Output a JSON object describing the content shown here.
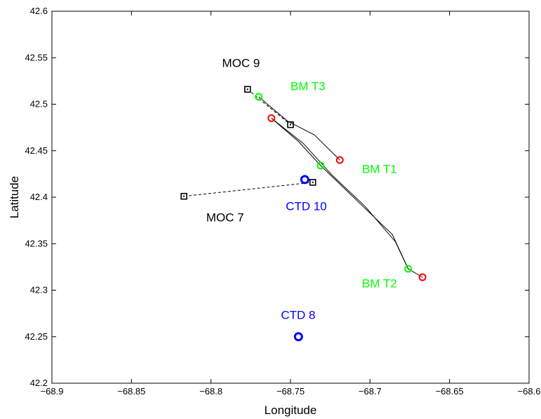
{
  "chart_data": {
    "type": "scatter",
    "title": "",
    "xlabel": "Longitude",
    "ylabel": "Latitude",
    "xlim": [
      -68.9,
      -68.6
    ],
    "ylim": [
      42.2,
      42.6
    ],
    "grid": false,
    "x_ticks": [
      -68.9,
      -68.85,
      -68.8,
      -68.75,
      -68.7,
      -68.65,
      -68.6
    ],
    "x_tick_labels": [
      "−68.9",
      "−68.85",
      "−68.8",
      "−68.75",
      "−68.7",
      "−68.65",
      "−68.6"
    ],
    "y_ticks": [
      42.2,
      42.25,
      42.3,
      42.35,
      42.4,
      42.45,
      42.5,
      42.55,
      42.6
    ],
    "y_tick_labels": [
      "42.2",
      "42.25",
      "42.3",
      "42.35",
      "42.4",
      "42.45",
      "42.5",
      "42.55",
      "42.6"
    ],
    "colors": {
      "moc": "#000000",
      "green": "#00ff00",
      "red": "#ff0000",
      "blue": "#0000ff"
    },
    "moc_tows": [
      {
        "start": [
          -68.777,
          42.516
        ],
        "end": [
          -68.75,
          42.478
        ]
      },
      {
        "start": [
          -68.817,
          42.401
        ],
        "end": [
          -68.736,
          42.416
        ]
      }
    ],
    "drifter_tracks": [
      {
        "points": [
          [
            -68.77,
            42.508
          ],
          [
            -68.752,
            42.482
          ],
          [
            -68.735,
            42.467
          ],
          [
            -68.719,
            42.44
          ]
        ]
      },
      {
        "points": [
          [
            -68.762,
            42.485
          ],
          [
            -68.745,
            42.46
          ],
          [
            -68.731,
            42.434
          ],
          [
            -68.708,
            42.396
          ],
          [
            -68.686,
            42.36
          ],
          [
            -68.676,
            42.323
          ],
          [
            -68.667,
            42.314
          ]
        ]
      },
      {
        "points": [
          [
            -68.762,
            42.485
          ],
          [
            -68.742,
            42.458
          ],
          [
            -68.724,
            42.424
          ],
          [
            -68.703,
            42.39
          ],
          [
            -68.684,
            42.352
          ],
          [
            -68.676,
            42.323
          ]
        ]
      }
    ],
    "green_circles": [
      [
        -68.77,
        42.508
      ],
      [
        -68.731,
        42.434
      ],
      [
        -68.676,
        42.323
      ]
    ],
    "red_circles": [
      [
        -68.762,
        42.485
      ],
      [
        -68.719,
        42.44
      ],
      [
        -68.667,
        42.314
      ]
    ],
    "blue_circles": [
      [
        -68.741,
        42.419
      ],
      [
        -68.745,
        42.25
      ]
    ],
    "annotations": [
      {
        "text": "MOC 9",
        "x": -68.793,
        "y": 42.54,
        "color": "#000000"
      },
      {
        "text": "MOC 7",
        "x": -68.803,
        "y": 42.374,
        "color": "#000000"
      },
      {
        "text": "BM T3",
        "x": -68.75,
        "y": 42.515,
        "color": "#00ff00"
      },
      {
        "text": "BM T1",
        "x": -68.705,
        "y": 42.426,
        "color": "#00ff00"
      },
      {
        "text": "BM T2",
        "x": -68.705,
        "y": 42.303,
        "color": "#00ff00"
      },
      {
        "text": "CTD 10",
        "x": -68.753,
        "y": 42.386,
        "color": "#0000ff"
      },
      {
        "text": "CTD 8",
        "x": -68.756,
        "y": 42.269,
        "color": "#0000ff"
      }
    ]
  }
}
